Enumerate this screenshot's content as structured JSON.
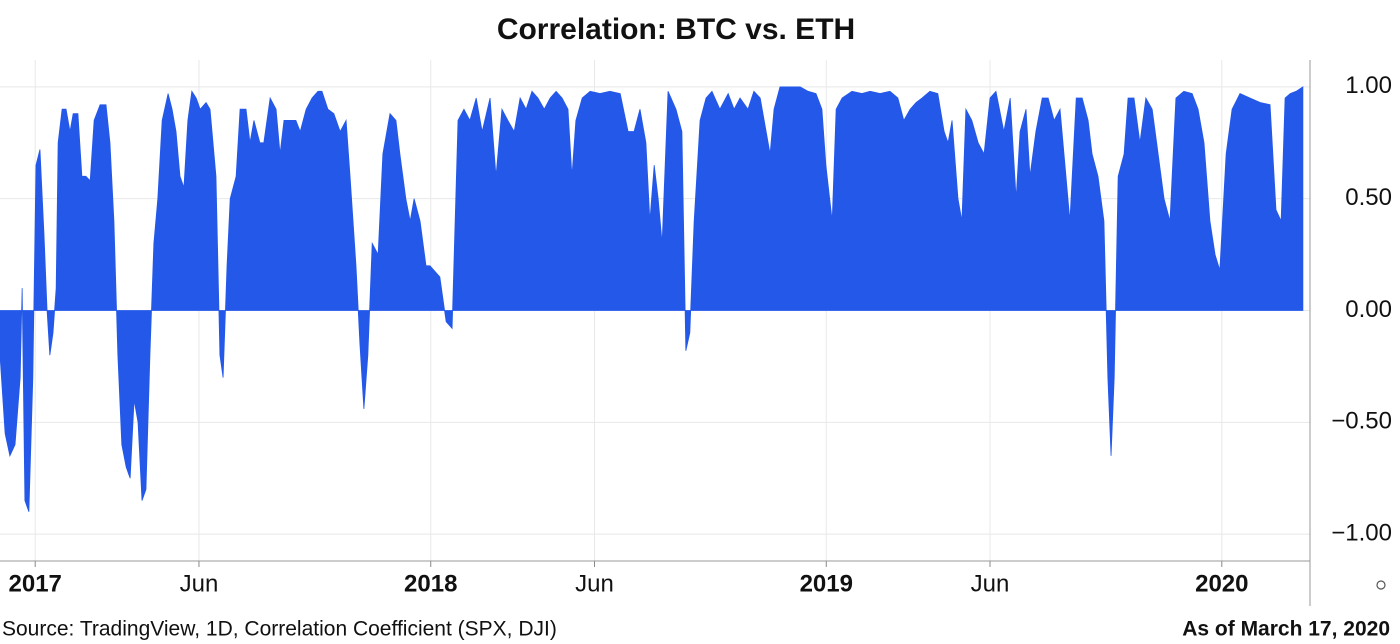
{
  "chart_data": {
    "type": "area",
    "title": "Correlation: BTC vs. ETH",
    "source": "Source: TradingView, 1D, Correlation Coefficient (SPX, DJI)",
    "note": "As of March 17, 2020",
    "color": "#2458e8",
    "xlim": [
      2016.911,
      2020.223
    ],
    "ylim": [
      -1.12,
      1.12
    ],
    "xticks": [
      2017,
      {
        "value": 2017.414,
        "label": "Jun"
      },
      2018,
      {
        "value": 2018.414,
        "label": "Jun"
      },
      2019,
      {
        "value": 2019.414,
        "label": "Jun"
      },
      2020
    ],
    "yticks": [
      {
        "value": 1,
        "label": "1.00"
      },
      {
        "value": 0.5,
        "label": "0.50"
      },
      {
        "value": 0,
        "label": "0.00"
      },
      {
        "value": -0.5,
        "label": "−0.50"
      },
      {
        "value": -1,
        "label": "−1.00"
      }
    ],
    "grid": true,
    "x": [
      2016.911,
      2016.924,
      2016.936,
      2016.949,
      2016.962,
      2016.967,
      2016.974,
      2016.984,
      2016.994,
      2017.002,
      2017.012,
      2017.022,
      2017.03,
      2017.037,
      2017.045,
      2017.053,
      2017.058,
      2017.068,
      2017.078,
      2017.088,
      2017.096,
      2017.108,
      2017.118,
      2017.128,
      2017.139,
      2017.149,
      2017.164,
      2017.179,
      2017.189,
      2017.199,
      2017.209,
      2017.219,
      2017.23,
      2017.24,
      2017.25,
      2017.26,
      2017.27,
      2017.28,
      2017.29,
      2017.3,
      2017.31,
      2017.321,
      2017.336,
      2017.346,
      2017.356,
      2017.366,
      2017.376,
      2017.386,
      2017.396,
      2017.407,
      2017.417,
      2017.432,
      2017.442,
      2017.457,
      2017.467,
      2017.475,
      2017.485,
      2017.493,
      2017.508,
      2017.518,
      2017.533,
      2017.543,
      2017.553,
      2017.568,
      2017.578,
      2017.594,
      2017.609,
      2017.619,
      2017.629,
      2017.644,
      2017.659,
      2017.67,
      2017.685,
      2017.7,
      2017.715,
      2017.725,
      2017.74,
      2017.755,
      2017.771,
      2017.786,
      2017.796,
      2017.811,
      2017.821,
      2017.831,
      2017.841,
      2017.852,
      2017.867,
      2017.879,
      2017.897,
      2017.912,
      2017.922,
      2017.937,
      2017.948,
      2017.958,
      2017.973,
      2017.988,
      2017.998,
      2018.023,
      2018.039,
      2018.054,
      2018.069,
      2018.084,
      2018.099,
      2018.115,
      2018.13,
      2018.15,
      2018.165,
      2018.18,
      2018.195,
      2018.211,
      2018.226,
      2018.241,
      2018.256,
      2018.271,
      2018.287,
      2018.302,
      2018.317,
      2018.332,
      2018.347,
      2018.357,
      2018.367,
      2018.383,
      2018.403,
      2018.428,
      2018.453,
      2018.479,
      2018.499,
      2018.514,
      2018.529,
      2018.544,
      2018.554,
      2018.565,
      2018.575,
      2018.585,
      2018.6,
      2018.62,
      2018.635,
      2018.645,
      2018.655,
      2018.666,
      2018.681,
      2018.696,
      2018.711,
      2018.731,
      2018.752,
      2018.767,
      2018.782,
      2018.802,
      2018.817,
      2018.833,
      2018.848,
      2018.858,
      2018.868,
      2018.883,
      2018.908,
      2018.934,
      2018.954,
      2018.974,
      2018.989,
      2018.999,
      2019.015,
      2019.025,
      2019.04,
      2019.065,
      2019.09,
      2019.111,
      2019.136,
      2019.161,
      2019.181,
      2019.196,
      2019.212,
      2019.227,
      2019.242,
      2019.262,
      2019.282,
      2019.298,
      2019.308,
      2019.318,
      2019.333,
      2019.343,
      2019.353,
      2019.368,
      2019.384,
      2019.399,
      2019.414,
      2019.429,
      2019.449,
      2019.465,
      2019.48,
      2019.49,
      2019.505,
      2019.515,
      2019.53,
      2019.546,
      2019.561,
      2019.576,
      2019.591,
      2019.601,
      2019.616,
      2019.632,
      2019.647,
      2019.662,
      2019.672,
      2019.687,
      2019.702,
      2019.712,
      2019.72,
      2019.728,
      2019.738,
      2019.753,
      2019.763,
      2019.778,
      2019.793,
      2019.808,
      2019.824,
      2019.839,
      2019.854,
      2019.869,
      2019.884,
      2019.904,
      2019.925,
      2019.94,
      2019.955,
      2019.97,
      2019.983,
      2019.995,
      2020.011,
      2020.026,
      2020.046,
      2020.071,
      2020.097,
      2020.122,
      2020.137,
      2020.15,
      2020.16,
      2020.173,
      2020.188,
      2020.205
    ],
    "values": [
      -0.2,
      -0.55,
      -0.65,
      -0.6,
      -0.3,
      0.1,
      -0.85,
      -0.9,
      -0.3,
      0.65,
      0.72,
      0.35,
      0.0,
      -0.2,
      -0.1,
      0.1,
      0.75,
      0.9,
      0.9,
      0.8,
      0.88,
      0.88,
      0.6,
      0.6,
      0.58,
      0.85,
      0.92,
      0.92,
      0.75,
      0.4,
      -0.2,
      -0.6,
      -0.7,
      -0.75,
      -0.4,
      -0.5,
      -0.85,
      -0.8,
      -0.2,
      0.3,
      0.5,
      0.85,
      0.97,
      0.9,
      0.8,
      0.6,
      0.55,
      0.85,
      0.98,
      0.95,
      0.9,
      0.93,
      0.9,
      0.6,
      -0.2,
      -0.3,
      0.2,
      0.5,
      0.6,
      0.9,
      0.9,
      0.75,
      0.85,
      0.75,
      0.75,
      0.95,
      0.9,
      0.7,
      0.85,
      0.85,
      0.85,
      0.8,
      0.9,
      0.95,
      0.98,
      0.98,
      0.9,
      0.88,
      0.8,
      0.85,
      0.6,
      0.2,
      -0.15,
      -0.44,
      -0.2,
      0.3,
      0.25,
      0.7,
      0.88,
      0.85,
      0.7,
      0.5,
      0.4,
      0.5,
      0.4,
      0.2,
      0.2,
      0.15,
      -0.05,
      -0.08,
      0.85,
      0.9,
      0.85,
      0.95,
      0.8,
      0.95,
      0.6,
      0.9,
      0.85,
      0.8,
      0.95,
      0.9,
      0.98,
      0.95,
      0.9,
      0.95,
      0.98,
      0.95,
      0.9,
      0.6,
      0.85,
      0.95,
      0.98,
      0.97,
      0.98,
      0.97,
      0.8,
      0.8,
      0.9,
      0.75,
      0.4,
      0.65,
      0.5,
      0.3,
      0.98,
      0.9,
      0.8,
      -0.18,
      -0.1,
      0.4,
      0.85,
      0.95,
      0.98,
      0.9,
      0.97,
      0.9,
      0.95,
      0.9,
      0.98,
      0.95,
      0.8,
      0.7,
      0.9,
      1.0,
      1.0,
      1.0,
      0.98,
      0.97,
      0.9,
      0.65,
      0.4,
      0.9,
      0.95,
      0.98,
      0.97,
      0.98,
      0.97,
      0.98,
      0.95,
      0.85,
      0.9,
      0.93,
      0.95,
      0.98,
      0.97,
      0.8,
      0.75,
      0.85,
      0.5,
      0.4,
      0.9,
      0.85,
      0.75,
      0.7,
      0.95,
      0.98,
      0.8,
      0.95,
      0.5,
      0.8,
      0.9,
      0.6,
      0.8,
      0.95,
      0.95,
      0.85,
      0.9,
      0.7,
      0.4,
      0.95,
      0.95,
      0.85,
      0.7,
      0.6,
      0.4,
      -0.3,
      -0.65,
      -0.3,
      0.6,
      0.7,
      0.95,
      0.95,
      0.75,
      0.95,
      0.9,
      0.7,
      0.5,
      0.4,
      0.95,
      0.98,
      0.97,
      0.9,
      0.75,
      0.4,
      0.25,
      0.18,
      0.7,
      0.9,
      0.97,
      0.95,
      0.93,
      0.92,
      0.45,
      0.4,
      0.95,
      0.97,
      0.98,
      1.0
    ]
  }
}
